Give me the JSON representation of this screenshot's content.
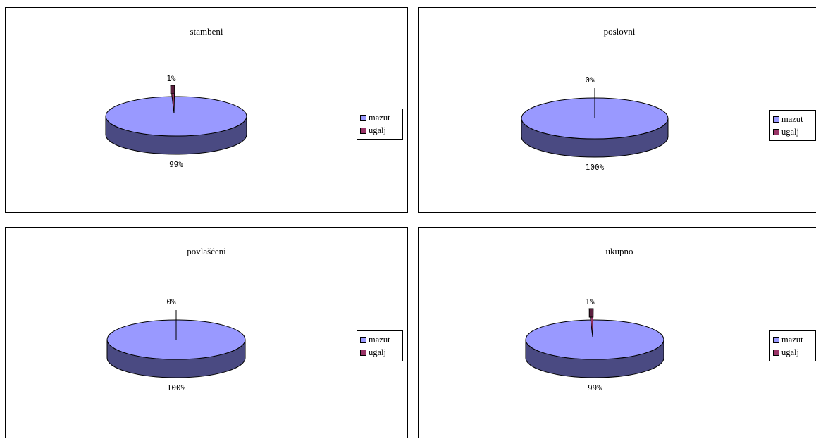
{
  "colors": {
    "mazut": "#9999ff",
    "mazut_side": "#4a4a82",
    "ugalj": "#993366",
    "ugalj_side": "#5a1f3e"
  },
  "chart_data": [
    {
      "type": "pie",
      "title": "stambeni",
      "series": [
        {
          "values": [
            99,
            1
          ],
          "labels": [
            "99%",
            "1%"
          ]
        }
      ],
      "categories": [
        "mazut",
        "ugalj"
      ],
      "legend": "right",
      "three_d": true
    },
    {
      "type": "pie",
      "title": "poslovni",
      "series": [
        {
          "values": [
            100,
            0
          ],
          "labels": [
            "100%",
            "0%"
          ]
        }
      ],
      "categories": [
        "mazut",
        "ugalj"
      ],
      "legend": "right",
      "three_d": true
    },
    {
      "type": "pie",
      "title": "povlašćeni",
      "series": [
        {
          "values": [
            100,
            0
          ],
          "labels": [
            "100%",
            "0%"
          ]
        }
      ],
      "categories": [
        "mazut",
        "ugalj"
      ],
      "legend": "right",
      "three_d": true
    },
    {
      "type": "pie",
      "title": "ukupno",
      "series": [
        {
          "values": [
            99,
            1
          ],
          "labels": [
            "99%",
            "1%"
          ]
        }
      ],
      "categories": [
        "mazut",
        "ugalj"
      ],
      "legend": "right",
      "three_d": true
    }
  ]
}
